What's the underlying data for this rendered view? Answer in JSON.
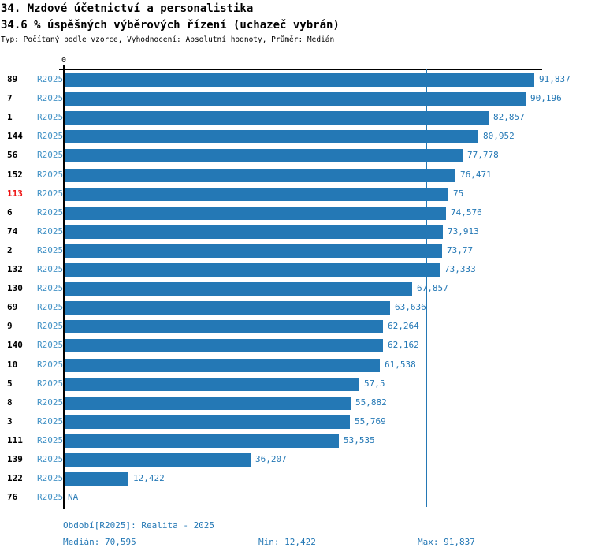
{
  "header": {
    "title": "34. Mzdové účetnictví a personalistika",
    "subtitle": "34.6 % úspěšných výběrových řízení (uchazeč vybrán)",
    "meta": "Typ: Počítaný podle vzorce, Vyhodnocení: Absolutní hodnoty, Průměr: Medián"
  },
  "axis": {
    "zero_tick_label": "0"
  },
  "colors": {
    "bar": "#2478B5",
    "period_label": "#4292C6",
    "value_label": "#2478B5",
    "footer_text": "#2478B5",
    "highlight_row": "#EE1111",
    "axis": "#000000"
  },
  "footer": {
    "period": "Období[R2025]: Realita - 2025",
    "median": "Medián: 70,595",
    "min": "Min: 12,422",
    "max": "Max: 91,837"
  },
  "chart_data": {
    "type": "bar",
    "orientation": "horizontal",
    "title": "34. Mzdové účetnictví a personalistika",
    "subtitle": "34.6 % úspěšných výběrových řízení (uchazeč vybrán)",
    "note": "Typ: Počítaný podle vzorce, Vyhodnocení: Absolutní hodnoty, Průměr: Medián",
    "period_label": "R2025",
    "categories": [
      "89",
      "7",
      "1",
      "144",
      "56",
      "152",
      "113",
      "6",
      "74",
      "2",
      "132",
      "130",
      "69",
      "9",
      "140",
      "10",
      "5",
      "8",
      "3",
      "111",
      "139",
      "122",
      "76"
    ],
    "values": [
      91.837,
      90.196,
      82.857,
      80.952,
      77.778,
      76.471,
      75,
      74.576,
      73.913,
      73.77,
      73.333,
      67.857,
      63.636,
      62.264,
      62.162,
      61.538,
      57.5,
      55.882,
      55.769,
      53.535,
      36.207,
      12.422,
      null
    ],
    "value_labels": [
      "91,837",
      "90,196",
      "82,857",
      "80,952",
      "77,778",
      "76,471",
      "75",
      "74,576",
      "73,913",
      "73,77",
      "73,333",
      "67,857",
      "63,636",
      "62,264",
      "62,162",
      "61,538",
      "57,5",
      "55,882",
      "55,769",
      "53,535",
      "36,207",
      "12,422",
      "NA"
    ],
    "highlight_category": "113",
    "xlim": [
      0,
      91.837
    ],
    "x_ticks": [
      0
    ],
    "median": 70.595,
    "min": 12.422,
    "max": 91.837,
    "grid": false,
    "legend": false
  }
}
